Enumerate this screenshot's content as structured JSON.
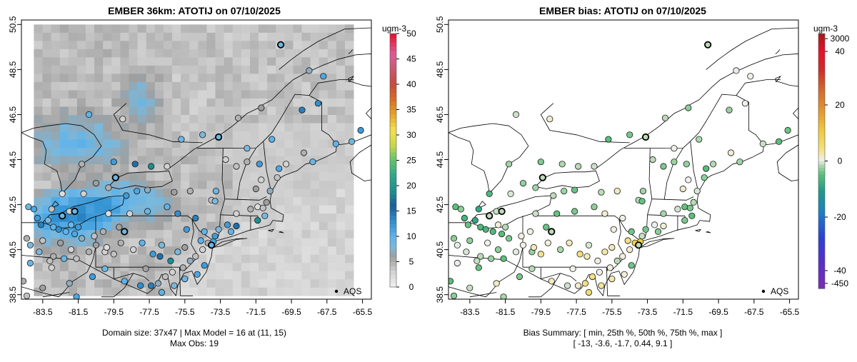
{
  "chart_data": [
    {
      "type": "map-heatmap",
      "title": "EMBER 36km: ATOTIJ on 07/10/2025",
      "x_ticks": [
        "-83.5",
        "-81.5",
        "-79.5",
        "-77.5",
        "-75.5",
        "-73.5",
        "-71.5",
        "-69.5",
        "-67.5",
        "-65.5"
      ],
      "y_ticks": [
        "38.5",
        "40.5",
        "42.5",
        "44.5",
        "46.5",
        "48.5",
        "50.5"
      ],
      "xlim": [
        -84.7,
        -65.0
      ],
      "ylim": [
        38.3,
        50.7
      ],
      "colorbar": {
        "unit": "ugm-3",
        "ticks": [
          "0",
          "5",
          "10",
          "15",
          "20",
          "25",
          "30",
          "35",
          "40",
          "45",
          "50"
        ],
        "range": [
          0,
          50
        ]
      },
      "legend": {
        "label": "AQS"
      },
      "note_line1": "Domain size: 37x47 | Max Model = 16 at (11, 15)",
      "note_line2": "Max Obs: 19",
      "observations_ugm3": [
        9,
        11,
        12,
        8,
        10,
        14,
        13,
        10,
        9,
        12,
        11,
        7,
        6,
        5,
        4,
        8,
        9,
        3,
        4,
        5,
        6,
        3,
        2,
        4,
        5,
        3,
        10,
        12,
        15,
        19,
        8,
        6,
        7,
        4,
        3,
        5
      ]
    },
    {
      "type": "map-points",
      "title": "EMBER bias: ATOTIJ on 07/10/2025",
      "x_ticks": [
        "-83.5",
        "-81.5",
        "-79.5",
        "-77.5",
        "-75.5",
        "-73.5",
        "-71.5",
        "-69.5",
        "-67.5",
        "-65.5"
      ],
      "y_ticks": [
        "38.5",
        "40.5",
        "42.5",
        "44.5",
        "46.5",
        "48.5",
        "50.5"
      ],
      "xlim": [
        -84.7,
        -65.0
      ],
      "ylim": [
        38.3,
        50.7
      ],
      "colorbar": {
        "unit": "ugm-3",
        "ticks": [
          "3000",
          "40",
          "20",
          "0",
          "-20",
          "-40",
          "-450"
        ],
        "range": [
          -450,
          3000
        ]
      },
      "legend": {
        "label": "AQS"
      },
      "note_line1": "Bias Summary: [ min, 25th %, 50th %, 75th %, max ]",
      "note_line2": "[ -13,   -3.6,   -1.7,   0.44,   9.1 ]",
      "bias_summary": {
        "min": -13,
        "p25": -3.6,
        "p50": -1.7,
        "p75": 0.44,
        "max": 9.1
      }
    }
  ]
}
